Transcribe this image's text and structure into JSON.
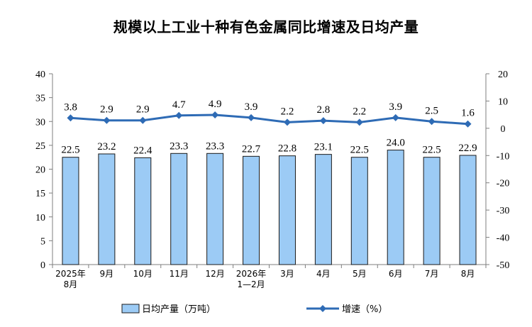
{
  "chart_data": {
    "type": "bar",
    "title": "规模以上工业十种有色金属同比增速及日均产量",
    "categories": [
      [
        "2025年",
        "8月"
      ],
      [
        "9月"
      ],
      [
        "10月"
      ],
      [
        "11月"
      ],
      [
        "12月"
      ],
      [
        "2026年",
        "1—2月"
      ],
      [
        "3月"
      ],
      [
        "4月"
      ],
      [
        "5月"
      ],
      [
        "6月"
      ],
      [
        "7月"
      ],
      [
        "8月"
      ]
    ],
    "series": [
      {
        "name": "日均产量（万吨）",
        "type": "bar",
        "axis": "left",
        "values": [
          22.5,
          23.2,
          22.4,
          23.3,
          23.3,
          22.7,
          22.8,
          23.1,
          22.5,
          24.0,
          22.5,
          22.9
        ],
        "labels": [
          "22.5",
          "23.2",
          "22.4",
          "23.3",
          "23.3",
          "22.7",
          "22.8",
          "23.1",
          "22.5",
          "24.0",
          "22.5",
          "22.9"
        ]
      },
      {
        "name": "增速（%）",
        "type": "line",
        "axis": "right",
        "values": [
          3.8,
          2.9,
          2.9,
          4.7,
          4.9,
          3.9,
          2.2,
          2.8,
          2.2,
          3.9,
          2.5,
          1.6
        ],
        "labels": [
          "3.8",
          "2.9",
          "2.9",
          "4.7",
          "4.9",
          "3.9",
          "2.2",
          "2.8",
          "2.2",
          "3.9",
          "2.5",
          "1.6"
        ]
      }
    ],
    "y_left": {
      "min": 0,
      "max": 40,
      "step": 5,
      "ticks": [
        "0",
        "5",
        "10",
        "15",
        "20",
        "25",
        "30",
        "35",
        "40"
      ]
    },
    "y_right": {
      "min": -50,
      "max": 20,
      "step": 10,
      "ticks": [
        "-50",
        "-40",
        "-30",
        "-20",
        "-10",
        "0",
        "10",
        "20"
      ]
    },
    "grid": false,
    "legend_position": "bottom",
    "colors": {
      "bar_fill": "#9ccbf5",
      "bar_stroke": "#1a1a1a",
      "line": "#2e6bb5",
      "axis": "#7f7f7f"
    }
  }
}
